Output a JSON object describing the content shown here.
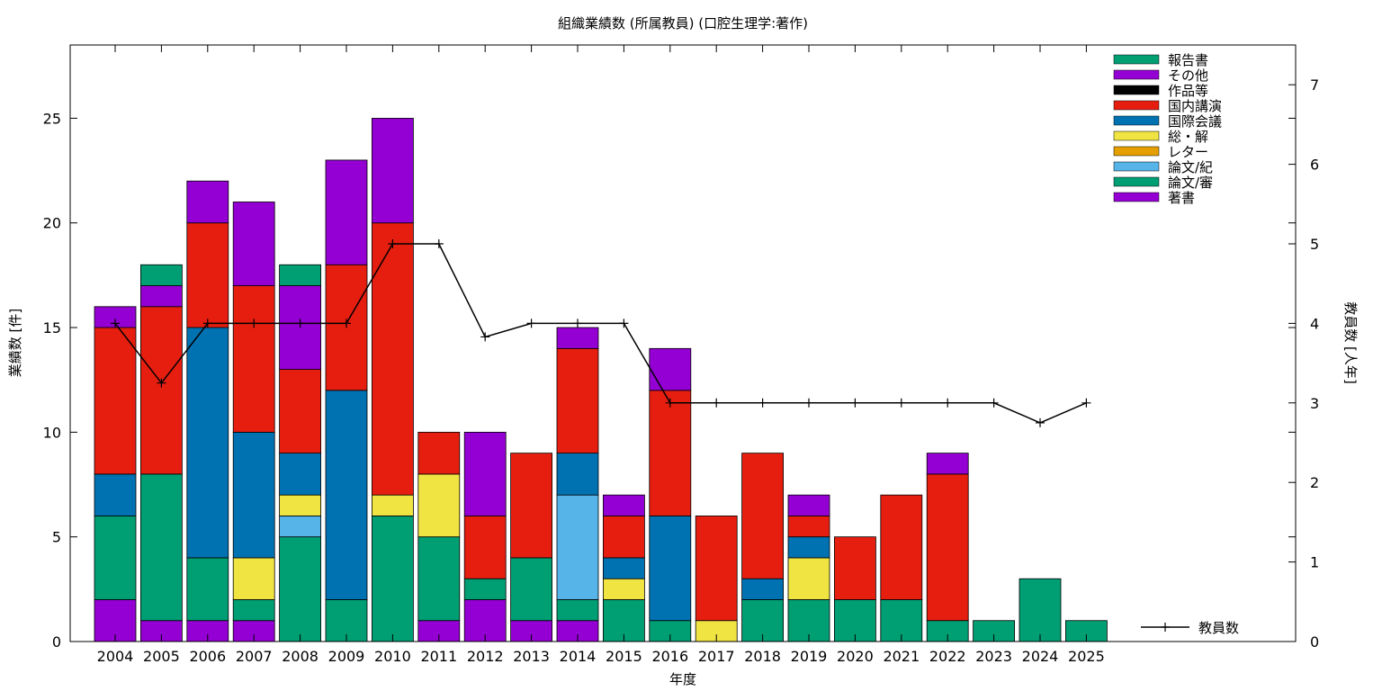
{
  "chart_data": {
    "type": "bar",
    "title": "組織業績数 (所属教員) (口腔生理学:著作)",
    "xlabel": "年度",
    "ylabel": "業績数 [件]",
    "y2label": "教員数 [人年]",
    "ylim": [
      0,
      28.5
    ],
    "y2lim": [
      0,
      7.5
    ],
    "yticks": [
      "0",
      "5",
      "10",
      "15",
      "20",
      "25"
    ],
    "y2ticks": [
      "0",
      "1",
      "2",
      "3",
      "4",
      "5",
      "6",
      "7"
    ],
    "categories": [
      "2004",
      "2005",
      "2006",
      "2007",
      "2008",
      "2009",
      "2010",
      "2011",
      "2012",
      "2013",
      "2014",
      "2015",
      "2016",
      "2017",
      "2018",
      "2019",
      "2020",
      "2021",
      "2022",
      "2023",
      "2024",
      "2025"
    ],
    "stack_order": [
      "著書",
      "論文/審",
      "論文/紀",
      "レター",
      "総・解",
      "国際会議",
      "国内講演",
      "作品等",
      "その他",
      "報告書"
    ],
    "series": [
      {
        "name": "報告書",
        "color": "#009e73",
        "values": [
          0,
          1,
          0,
          0,
          1,
          0,
          0,
          0,
          0,
          0,
          0,
          0,
          0,
          0,
          0,
          0,
          0,
          0,
          0,
          0,
          0,
          0
        ]
      },
      {
        "name": "その他",
        "color": "#9400d3",
        "values": [
          1,
          1,
          2,
          4,
          4,
          5,
          5,
          0,
          4,
          0,
          1,
          1,
          2,
          0,
          0,
          1,
          0,
          0,
          1,
          0,
          0,
          0
        ]
      },
      {
        "name": "作品等",
        "color": "#000000",
        "values": [
          0,
          0,
          0,
          0,
          0,
          0,
          0,
          0,
          0,
          0,
          0,
          0,
          0,
          0,
          0,
          0,
          0,
          0,
          0,
          0,
          0,
          0
        ]
      },
      {
        "name": "国内講演",
        "color": "#e51e10",
        "values": [
          7,
          8,
          5,
          7,
          4,
          6,
          13,
          2,
          3,
          5,
          5,
          2,
          6,
          5,
          6,
          1,
          3,
          5,
          7,
          0,
          0,
          0
        ]
      },
      {
        "name": "国際会議",
        "color": "#0072b2",
        "values": [
          2,
          0,
          11,
          6,
          2,
          10,
          0,
          0,
          0,
          0,
          2,
          1,
          5,
          0,
          1,
          1,
          0,
          0,
          0,
          0,
          0,
          0
        ]
      },
      {
        "name": "総・解",
        "color": "#f0e442",
        "values": [
          0,
          0,
          0,
          2,
          1,
          0,
          1,
          3,
          0,
          0,
          0,
          1,
          0,
          1,
          0,
          2,
          0,
          0,
          0,
          0,
          0,
          0
        ]
      },
      {
        "name": "レター",
        "color": "#e69f00",
        "values": [
          0,
          0,
          0,
          0,
          0,
          0,
          0,
          0,
          0,
          0,
          0,
          0,
          0,
          0,
          0,
          0,
          0,
          0,
          0,
          0,
          0,
          0
        ]
      },
      {
        "name": "論文/紀",
        "color": "#56b4e9",
        "values": [
          0,
          0,
          0,
          0,
          1,
          0,
          0,
          0,
          0,
          0,
          5,
          0,
          0,
          0,
          0,
          0,
          0,
          0,
          0,
          0,
          0,
          0
        ]
      },
      {
        "name": "論文/審",
        "color": "#009e73",
        "values": [
          4,
          7,
          3,
          1,
          5,
          2,
          6,
          4,
          1,
          3,
          1,
          2,
          1,
          0,
          2,
          2,
          2,
          2,
          1,
          1,
          3,
          1
        ]
      },
      {
        "name": "著書",
        "color": "#9400d3",
        "values": [
          2,
          1,
          1,
          1,
          0,
          0,
          0,
          1,
          2,
          1,
          1,
          0,
          0,
          0,
          0,
          0,
          0,
          0,
          0,
          0,
          0,
          0
        ]
      }
    ],
    "line_series": {
      "name": "教員数",
      "color": "#000000",
      "axis": "y2",
      "values": [
        4,
        3.25,
        4,
        4,
        4,
        4,
        5,
        5,
        3.83,
        4,
        4,
        4,
        3,
        3,
        3,
        3,
        3,
        3,
        3,
        3,
        2.75,
        3
      ]
    },
    "legend_position": "top-right",
    "grid": false
  }
}
